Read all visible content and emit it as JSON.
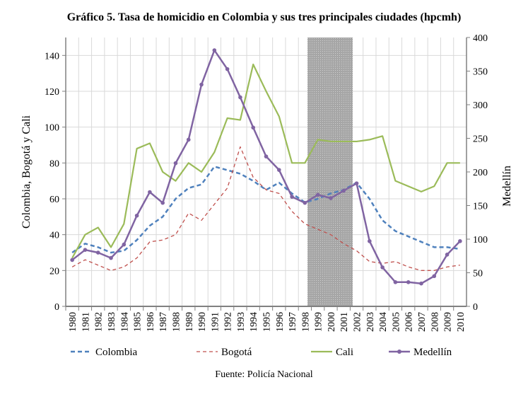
{
  "chart_data": {
    "type": "line",
    "title": "Gráfico 5. Tasa de homicidio en Colombia y sus tres principales ciudades (hpcmh)",
    "source": "Fuente: Policía Nacional",
    "ylabel_left": "Colombia, Bogotá y Cali",
    "ylabel_right": "Medellín",
    "ylim_left": [
      0,
      150
    ],
    "ylim_right": [
      0,
      400
    ],
    "yticks_left": [
      0,
      20,
      40,
      60,
      80,
      100,
      120,
      140
    ],
    "yticks_right": [
      0,
      50,
      100,
      150,
      200,
      250,
      300,
      350,
      400
    ],
    "grid": true,
    "legend_position": "bottom",
    "shaded_region": {
      "from": 1998.2,
      "to": 2001.7,
      "color": "#a6a6a6"
    },
    "x": [
      1980,
      1981,
      1982,
      1983,
      1984,
      1985,
      1986,
      1987,
      1988,
      1989,
      1990,
      1991,
      1992,
      1993,
      1994,
      1995,
      1996,
      1997,
      1998,
      1999,
      2000,
      2001,
      2002,
      2003,
      2004,
      2005,
      2006,
      2007,
      2008,
      2009,
      2010
    ],
    "series": [
      {
        "name": "Colombia",
        "axis": "left",
        "style": "dashed",
        "color": "#4f81bd",
        "values": [
          30,
          35,
          33,
          30,
          31,
          37,
          45,
          50,
          60,
          66,
          68,
          78,
          76,
          74,
          70,
          65,
          69,
          63,
          58,
          60,
          63,
          65,
          69,
          60,
          48,
          42,
          39,
          36,
          33,
          33,
          32
        ]
      },
      {
        "name": "Bogotá",
        "axis": "left",
        "style": "dashed-thin",
        "color": "#c0504d",
        "values": [
          22,
          26,
          23,
          20,
          22,
          27,
          36,
          37,
          40,
          52,
          48,
          57,
          66,
          89,
          72,
          65,
          63,
          53,
          46,
          43,
          40,
          35,
          31,
          25,
          24,
          25,
          22,
          20,
          20,
          22,
          23
        ]
      },
      {
        "name": "Cali",
        "axis": "left",
        "style": "solid",
        "color": "#9bbb59",
        "values": [
          27,
          40,
          44,
          33,
          46,
          88,
          91,
          75,
          70,
          80,
          75,
          86,
          105,
          104,
          135,
          120,
          106,
          80,
          80,
          93,
          92,
          92,
          92,
          93,
          95,
          70,
          67,
          64,
          67,
          80,
          80
        ]
      },
      {
        "name": "Medellín",
        "axis": "right",
        "style": "solid-markers",
        "color": "#8064a2",
        "values": [
          69,
          84,
          80,
          72,
          92,
          135,
          170,
          154,
          213,
          248,
          330,
          381,
          353,
          311,
          266,
          223,
          203,
          163,
          154,
          166,
          161,
          172,
          183,
          97,
          58,
          36,
          36,
          34,
          45,
          77,
          97
        ]
      }
    ]
  }
}
